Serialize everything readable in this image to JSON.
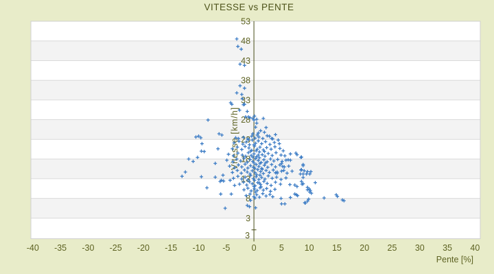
{
  "title": "VITESSE vs PENTE",
  "colors": {
    "page_background": "#e8ecc9",
    "plot_background": "#ffffff",
    "band_fill": "#f3f3f3",
    "gridline": "#dadada",
    "plot_border": "#cfcfcf",
    "axis_line": "#464b16",
    "tick_text": "#5d6222",
    "title_text": "#4d521a",
    "marker": "#3c7cc5"
  },
  "chart_data": {
    "type": "scatter",
    "title": "VITESSE vs PENTE",
    "xlabel": "Pente [%]",
    "ylabel": "Vitesse [km/h]",
    "xlim": [
      -40.35,
      40.95
    ],
    "ylim": [
      -2.25,
      53
    ],
    "x_ticks": [
      -40,
      -35,
      -30,
      -25,
      -20,
      -15,
      -10,
      -5,
      0,
      5,
      10,
      15,
      20,
      25,
      30,
      35,
      40
    ],
    "y_ticks": [
      53,
      48,
      43,
      38,
      33,
      28,
      23,
      18,
      13,
      8,
      3
    ],
    "extra_bottom_y_label": "3",
    "y_axis_zero_tick": 0,
    "grid": "horizontal-bands-alternating",
    "legend": "none",
    "marker": "plus",
    "points": [
      [
        -3.1,
        48.5
      ],
      [
        -2.9,
        46.6
      ],
      [
        -2.3,
        45.9
      ],
      [
        -2.5,
        42.1
      ],
      [
        -1.7,
        41.8
      ],
      [
        -2.5,
        36.6
      ],
      [
        -1.7,
        36.0
      ],
      [
        -3.1,
        34.8
      ],
      [
        -2.2,
        34.4
      ],
      [
        -2.1,
        33.3
      ],
      [
        -1.7,
        31.9
      ],
      [
        -4.2,
        32.3
      ],
      [
        -4.0,
        31.9
      ],
      [
        -1.9,
        31.8
      ],
      [
        -2.6,
        30.4
      ],
      [
        -1.2,
        30.1
      ],
      [
        -1.5,
        28.7
      ],
      [
        -1.0,
        28.7
      ],
      [
        -0.7,
        28.5
      ],
      [
        -0.2,
        28.3
      ],
      [
        0.0,
        27.9
      ],
      [
        0.5,
        28.1
      ],
      [
        1.7,
        28.3
      ],
      [
        0.1,
        28.9
      ],
      [
        -8.3,
        27.9
      ],
      [
        0.5,
        27.1
      ],
      [
        0.3,
        26.1
      ],
      [
        2.2,
        26.0
      ],
      [
        1.2,
        25.2
      ],
      [
        0.8,
        24.6
      ],
      [
        1.9,
        24.8
      ],
      [
        3.9,
        24.2
      ],
      [
        3.2,
        23.2
      ],
      [
        2.8,
        23.8
      ],
      [
        -10.5,
        23.6
      ],
      [
        -10.0,
        23.8
      ],
      [
        -9.6,
        23.4
      ],
      [
        -9.4,
        21.9
      ],
      [
        -6.3,
        24.4
      ],
      [
        -5.8,
        24.1
      ],
      [
        -6.5,
        20.6
      ],
      [
        -9.5,
        20.0
      ],
      [
        -9.0,
        19.9
      ],
      [
        -10.2,
        18.4
      ],
      [
        -11.8,
        18.0
      ],
      [
        -11.0,
        17.4
      ],
      [
        -7.0,
        16.9
      ],
      [
        -12.4,
        14.7
      ],
      [
        -13.0,
        13.6
      ],
      [
        -9.5,
        13.5
      ],
      [
        -7.0,
        13.4
      ],
      [
        -8.5,
        10.7
      ],
      [
        -6.1,
        12.3
      ],
      [
        -5.9,
        12.6
      ],
      [
        -5.5,
        12.4
      ],
      [
        -5.6,
        13.9
      ],
      [
        -4.3,
        12.6
      ],
      [
        -6.0,
        9.1
      ],
      [
        -4.1,
        9.1
      ],
      [
        -3.5,
        11.3
      ],
      [
        -5.2,
        5.5
      ],
      [
        -0.6,
        7.5
      ],
      [
        -0.8,
        5.9
      ],
      [
        0.3,
        5.6
      ],
      [
        -1.2,
        6.2
      ],
      [
        5.3,
        20.1
      ],
      [
        6.6,
        19.3
      ],
      [
        7.6,
        19.5
      ],
      [
        8.5,
        18.4
      ],
      [
        5.8,
        17.7
      ],
      [
        6.2,
        17.8
      ],
      [
        6.6,
        17.7
      ],
      [
        8.9,
        16.6
      ],
      [
        8.6,
        15.3
      ],
      [
        5.0,
        16.9
      ],
      [
        5.2,
        16.1
      ],
      [
        5.4,
        15.1
      ],
      [
        3.9,
        14.5
      ],
      [
        4.2,
        14.4
      ],
      [
        8.4,
        14.2
      ],
      [
        8.9,
        14.2
      ],
      [
        9.5,
        14.2
      ],
      [
        10.1,
        14.2
      ],
      [
        7.8,
        19.1
      ],
      [
        8.6,
        18.5
      ],
      [
        8.9,
        16.3
      ],
      [
        8.5,
        15.2
      ],
      [
        9.1,
        15.0
      ],
      [
        9.7,
        14.8
      ],
      [
        10.3,
        14.8
      ],
      [
        8.9,
        13.3
      ],
      [
        8.6,
        12.3
      ],
      [
        8.9,
        11.7
      ],
      [
        11.1,
        12.0
      ],
      [
        6.5,
        11.5
      ],
      [
        7.4,
        11.4
      ],
      [
        8.7,
        11.6
      ],
      [
        7.8,
        11.0
      ],
      [
        9.7,
        10.8
      ],
      [
        10.0,
        10.4
      ],
      [
        10.2,
        10.0
      ],
      [
        10.4,
        9.3
      ],
      [
        9.7,
        10.2
      ],
      [
        10.1,
        9.6
      ],
      [
        7.7,
        8.9
      ],
      [
        7.9,
        8.7
      ],
      [
        6.6,
        8.2
      ],
      [
        4.9,
        8.0
      ],
      [
        7.4,
        9.1
      ],
      [
        9.9,
        7.8
      ],
      [
        9.3,
        6.8
      ],
      [
        9.2,
        6.9
      ],
      [
        9.7,
        7.3
      ],
      [
        5.0,
        6.6
      ],
      [
        5.6,
        6.6
      ],
      [
        12.7,
        8.1
      ],
      [
        14.9,
        8.9
      ],
      [
        15.1,
        8.5
      ],
      [
        16.0,
        7.6
      ],
      [
        16.3,
        7.4
      ],
      [
        -2.8,
        23.2
      ],
      [
        -1.9,
        23.5
      ],
      [
        -1.1,
        23.1
      ],
      [
        -0.4,
        23.8
      ],
      [
        0.2,
        23.3
      ],
      [
        0.9,
        23.6
      ],
      [
        1.6,
        23.2
      ],
      [
        2.4,
        23.9
      ],
      [
        -0.2,
        24.4
      ],
      [
        0.6,
        24.1
      ],
      [
        -3.3,
        23.4
      ],
      [
        3.4,
        23.1
      ],
      [
        -3.6,
        22.1
      ],
      [
        -2.7,
        22.5
      ],
      [
        -2.0,
        21.8
      ],
      [
        -1.4,
        22.3
      ],
      [
        -0.8,
        21.6
      ],
      [
        -0.3,
        22.8
      ],
      [
        0.3,
        22.0
      ],
      [
        0.8,
        22.6
      ],
      [
        1.4,
        21.9
      ],
      [
        2.1,
        22.4
      ],
      [
        2.9,
        21.7
      ],
      [
        3.7,
        22.2
      ],
      [
        4.4,
        22.8
      ],
      [
        4.6,
        21.9
      ],
      [
        0.0,
        21.6
      ],
      [
        -1.0,
        22.9
      ],
      [
        -3.9,
        20.6
      ],
      [
        -3.0,
        21.0
      ],
      [
        -2.2,
        20.4
      ],
      [
        -1.6,
        21.2
      ],
      [
        -0.9,
        20.8
      ],
      [
        -0.4,
        20.2
      ],
      [
        0.1,
        21.3
      ],
      [
        0.6,
        20.5
      ],
      [
        1.1,
        21.0
      ],
      [
        1.7,
        20.3
      ],
      [
        2.3,
        20.9
      ],
      [
        3.1,
        20.5
      ],
      [
        3.8,
        21.1
      ],
      [
        4.7,
        20.7
      ],
      [
        -0.6,
        20.0
      ],
      [
        0.4,
        20.1
      ],
      [
        -4.6,
        19.2
      ],
      [
        -3.7,
        18.8
      ],
      [
        -2.9,
        19.5
      ],
      [
        -2.1,
        19.0
      ],
      [
        -1.5,
        18.7
      ],
      [
        -1.0,
        19.6
      ],
      [
        -0.5,
        18.9
      ],
      [
        0.0,
        19.3
      ],
      [
        0.5,
        18.6
      ],
      [
        1.0,
        19.8
      ],
      [
        1.5,
        19.1
      ],
      [
        2.0,
        18.7
      ],
      [
        2.6,
        19.4
      ],
      [
        3.3,
        18.9
      ],
      [
        4.0,
        19.6
      ],
      [
        4.9,
        19.0
      ],
      [
        5.6,
        18.8
      ],
      [
        -0.2,
        18.5
      ],
      [
        0.8,
        19.0
      ],
      [
        1.9,
        19.9
      ],
      [
        -4.9,
        17.7
      ],
      [
        -3.8,
        17.3
      ],
      [
        -3.1,
        18.0
      ],
      [
        -2.4,
        17.5
      ],
      [
        -1.8,
        18.2
      ],
      [
        -1.2,
        17.2
      ],
      [
        -0.7,
        17.9
      ],
      [
        -0.2,
        17.4
      ],
      [
        0.3,
        18.1
      ],
      [
        0.8,
        17.6
      ],
      [
        1.3,
        17.1
      ],
      [
        1.8,
        17.8
      ],
      [
        2.4,
        17.3
      ],
      [
        3.0,
        18.0
      ],
      [
        3.6,
        17.5
      ],
      [
        4.3,
        17.9
      ],
      [
        5.1,
        17.4
      ],
      [
        0.0,
        17.0
      ],
      [
        1.0,
        18.3
      ],
      [
        2.1,
        17.0
      ],
      [
        -4.4,
        16.2
      ],
      [
        -3.5,
        15.8
      ],
      [
        -2.8,
        16.5
      ],
      [
        -2.2,
        16.0
      ],
      [
        -1.6,
        16.7
      ],
      [
        -1.1,
        15.7
      ],
      [
        -0.6,
        16.3
      ],
      [
        -0.1,
        15.9
      ],
      [
        0.4,
        16.6
      ],
      [
        0.9,
        16.1
      ],
      [
        1.4,
        15.6
      ],
      [
        1.9,
        16.4
      ],
      [
        2.5,
        15.9
      ],
      [
        3.2,
        16.6
      ],
      [
        3.9,
        16.0
      ],
      [
        4.7,
        16.5
      ],
      [
        5.5,
        16.0
      ],
      [
        6.3,
        16.2
      ],
      [
        0.2,
        15.6
      ],
      [
        1.1,
        16.9
      ],
      [
        -3.9,
        14.6
      ],
      [
        -3.0,
        15.1
      ],
      [
        -2.3,
        14.4
      ],
      [
        -1.7,
        15.2
      ],
      [
        -1.2,
        14.7
      ],
      [
        -0.7,
        14.2
      ],
      [
        -0.3,
        15.0
      ],
      [
        0.2,
        14.5
      ],
      [
        0.7,
        15.3
      ],
      [
        1.2,
        14.8
      ],
      [
        1.7,
        14.3
      ],
      [
        2.2,
        15.1
      ],
      [
        2.8,
        14.6
      ],
      [
        3.5,
        15.2
      ],
      [
        4.2,
        14.7
      ],
      [
        5.0,
        14.9
      ],
      [
        6.0,
        14.4
      ],
      [
        6.9,
        14.9
      ],
      [
        0.5,
        14.0
      ],
      [
        1.5,
        15.4
      ],
      [
        -3.7,
        13.1
      ],
      [
        -2.9,
        13.6
      ],
      [
        -2.2,
        12.9
      ],
      [
        -1.6,
        13.4
      ],
      [
        -1.1,
        12.7
      ],
      [
        -0.6,
        13.8
      ],
      [
        -0.1,
        13.0
      ],
      [
        0.4,
        13.5
      ],
      [
        0.9,
        12.8
      ],
      [
        1.4,
        13.3
      ],
      [
        2.0,
        12.9
      ],
      [
        2.6,
        13.7
      ],
      [
        3.3,
        13.1
      ],
      [
        4.1,
        13.4
      ],
      [
        4.9,
        12.8
      ],
      [
        5.8,
        13.2
      ],
      [
        0.1,
        12.6
      ],
      [
        1.1,
        13.9
      ],
      [
        -2.6,
        11.6
      ],
      [
        -1.9,
        12.1
      ],
      [
        -1.3,
        11.4
      ],
      [
        -0.8,
        12.2
      ],
      [
        -0.3,
        11.7
      ],
      [
        0.2,
        11.2
      ],
      [
        0.7,
        12.0
      ],
      [
        1.2,
        11.5
      ],
      [
        1.8,
        12.3
      ],
      [
        2.4,
        11.8
      ],
      [
        3.1,
        11.3
      ],
      [
        3.9,
        12.1
      ],
      [
        4.8,
        11.6
      ],
      [
        0.0,
        11.0
      ],
      [
        1.0,
        11.9
      ],
      [
        -1.8,
        10.2
      ],
      [
        -1.1,
        10.6
      ],
      [
        -0.5,
        9.9
      ],
      [
        0.1,
        10.4
      ],
      [
        0.6,
        10.0
      ],
      [
        1.1,
        10.7
      ],
      [
        1.7,
        10.1
      ],
      [
        2.3,
        10.5
      ],
      [
        3.0,
        9.8
      ],
      [
        3.8,
        10.3
      ],
      [
        0.3,
        9.6
      ],
      [
        1.3,
        10.9
      ],
      [
        -1.4,
        8.7
      ],
      [
        -0.7,
        9.1
      ],
      [
        0.0,
        8.4
      ],
      [
        0.5,
        8.9
      ],
      [
        1.0,
        8.3
      ],
      [
        1.6,
        9.2
      ],
      [
        2.2,
        8.6
      ],
      [
        2.9,
        9.0
      ],
      [
        0.2,
        8.1
      ],
      [
        3.4,
        8.4
      ]
    ]
  }
}
